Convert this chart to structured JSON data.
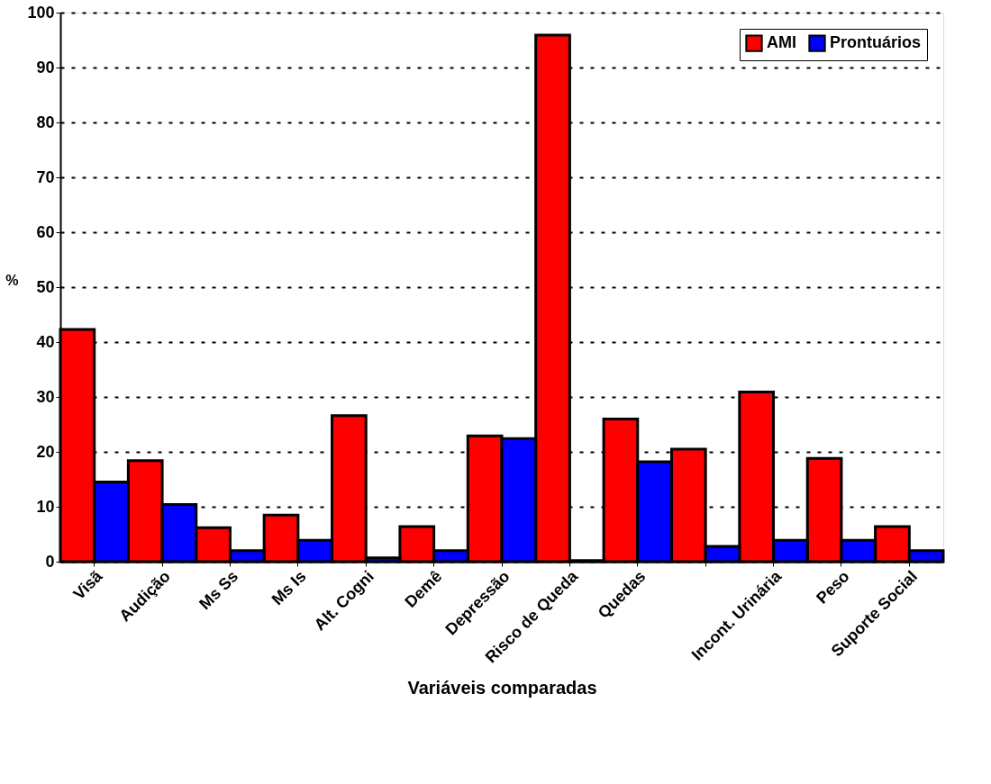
{
  "chart_data": {
    "type": "bar",
    "xlabel": "Variáveis comparadas",
    "ylabel": "%",
    "categories": [
      "Visã",
      "Audição",
      "Ms Ss",
      "Ms Is",
      "Alt. Cogni",
      "Demê",
      "Depressão",
      "Risco de Queda",
      "Quedas",
      null,
      "Incont. Urinária",
      "Peso",
      "Suporte Social"
    ],
    "series": [
      {
        "name": "AMI",
        "color": "#ff0000",
        "values": [
          42.3,
          18.4,
          6.2,
          8.5,
          26.6,
          6.4,
          22.9,
          95.9,
          26.0,
          20.5,
          30.9,
          18.8,
          6.4
        ]
      },
      {
        "name": "Prontuários",
        "color": "#0000ff",
        "values": [
          14.5,
          10.4,
          2.0,
          3.9,
          0.7,
          2.0,
          22.4,
          0.2,
          18.2,
          2.8,
          3.9,
          3.9,
          2.0
        ]
      }
    ],
    "ylim": [
      0,
      100
    ],
    "yticks": [
      0,
      10,
      20,
      30,
      40,
      50,
      60,
      70,
      80,
      90,
      100
    ],
    "grid": "y",
    "legend": "top right"
  }
}
